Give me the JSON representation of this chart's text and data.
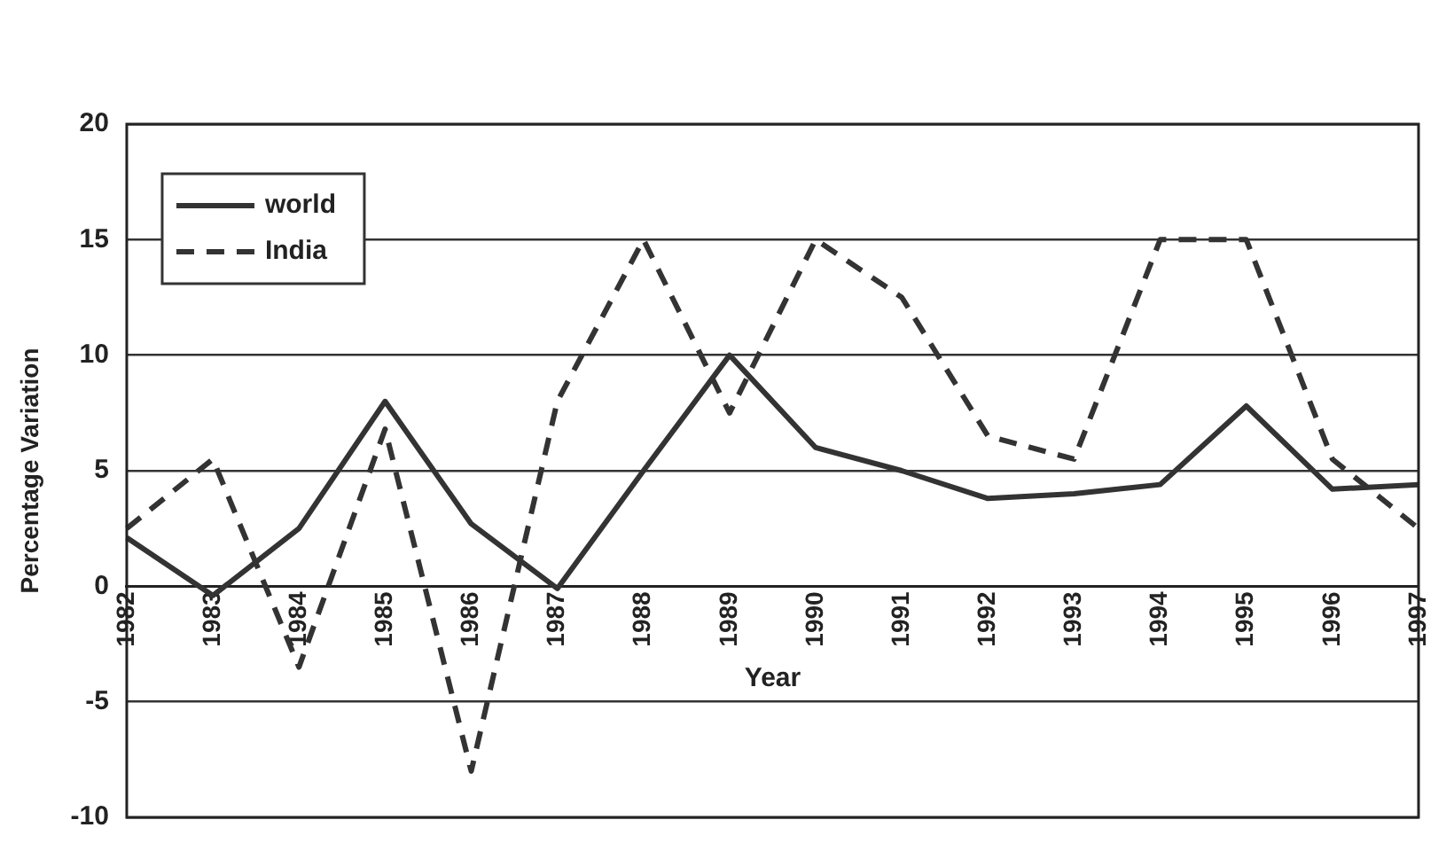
{
  "chart_data": {
    "type": "line",
    "xlabel": "Year",
    "ylabel": "Percentage Variation",
    "categories": [
      "1982",
      "1983",
      "1984",
      "1985",
      "1986",
      "1987",
      "1988",
      "1989",
      "1990",
      "1991",
      "1992",
      "1993",
      "1994",
      "1995",
      "1996",
      "1997"
    ],
    "series": [
      {
        "name": "world",
        "color": "#333333",
        "line_style": "solid",
        "values": [
          2.1,
          -0.4,
          2.5,
          8,
          2.7,
          -0.1,
          5,
          10,
          6,
          5,
          3.8,
          4,
          4.4,
          7.8,
          4.2,
          4.4
        ]
      },
      {
        "name": "India",
        "color": "#333333",
        "line_style": "dashed",
        "values": [
          2.5,
          5.5,
          -3.5,
          6.8,
          -8,
          8,
          15,
          7.5,
          15,
          12.5,
          6.5,
          5.5,
          15,
          15,
          5.5,
          2.5
        ]
      }
    ],
    "ylim": [
      -10,
      20
    ],
    "yticks": [
      -10,
      -5,
      0,
      5,
      10,
      15,
      20
    ],
    "grid": "y",
    "legend": "top left",
    "marker": "none"
  }
}
